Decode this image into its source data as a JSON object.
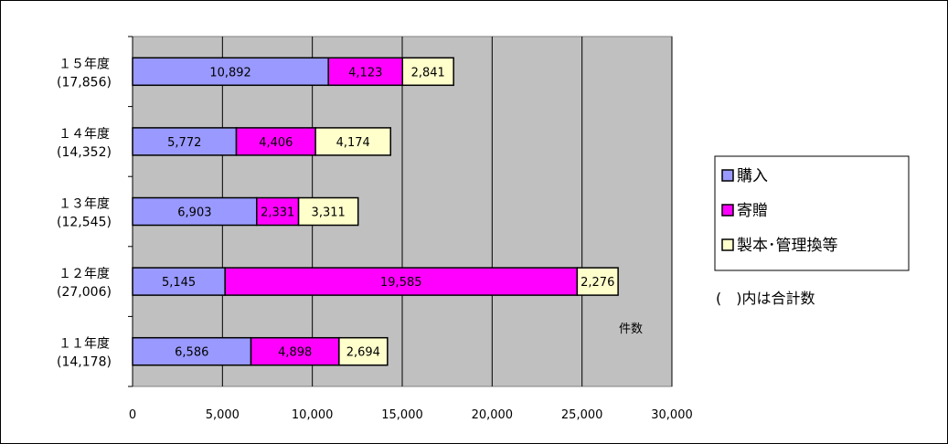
{
  "chart_data": {
    "type": "bar",
    "orientation": "horizontal",
    "stacked": true,
    "categories": [
      "１５年度",
      "１４年度",
      "１３年度",
      "１２年度",
      "１１年度"
    ],
    "category_totals": [
      "(17,856)",
      "(14,352)",
      "(12,545)",
      "(27,006)",
      "(14,178)"
    ],
    "series": [
      {
        "name": "購入",
        "color": "#9999ff",
        "values": [
          10892,
          5772,
          6903,
          5145,
          6586
        ]
      },
      {
        "name": "寄贈",
        "color": "#ff00ff",
        "values": [
          4123,
          4406,
          2331,
          19585,
          4898
        ]
      },
      {
        "name": "製本･管理換等",
        "color": "#ffffcc",
        "values": [
          2841,
          4174,
          3311,
          2276,
          2694
        ]
      }
    ],
    "data_labels": [
      [
        "10,892",
        "4,123",
        "2,841"
      ],
      [
        "5,772",
        "4,406",
        "4,174"
      ],
      [
        "6,903",
        "2,331",
        "3,311"
      ],
      [
        "5,145",
        "19,585",
        "2,276"
      ],
      [
        "6,586",
        "4,898",
        "2,694"
      ]
    ],
    "xlim": [
      0,
      30000
    ],
    "xticks": [
      0,
      5000,
      10000,
      15000,
      20000,
      25000,
      30000
    ],
    "xtick_labels": [
      "0",
      "5,000",
      "10,000",
      "15,000",
      "20,000",
      "25,000",
      "30,000"
    ],
    "xlabel": "件数",
    "note": "(　)内は合計数",
    "grid": "vertical",
    "plot_background": "#c0c0c0",
    "legend_position": "right"
  }
}
